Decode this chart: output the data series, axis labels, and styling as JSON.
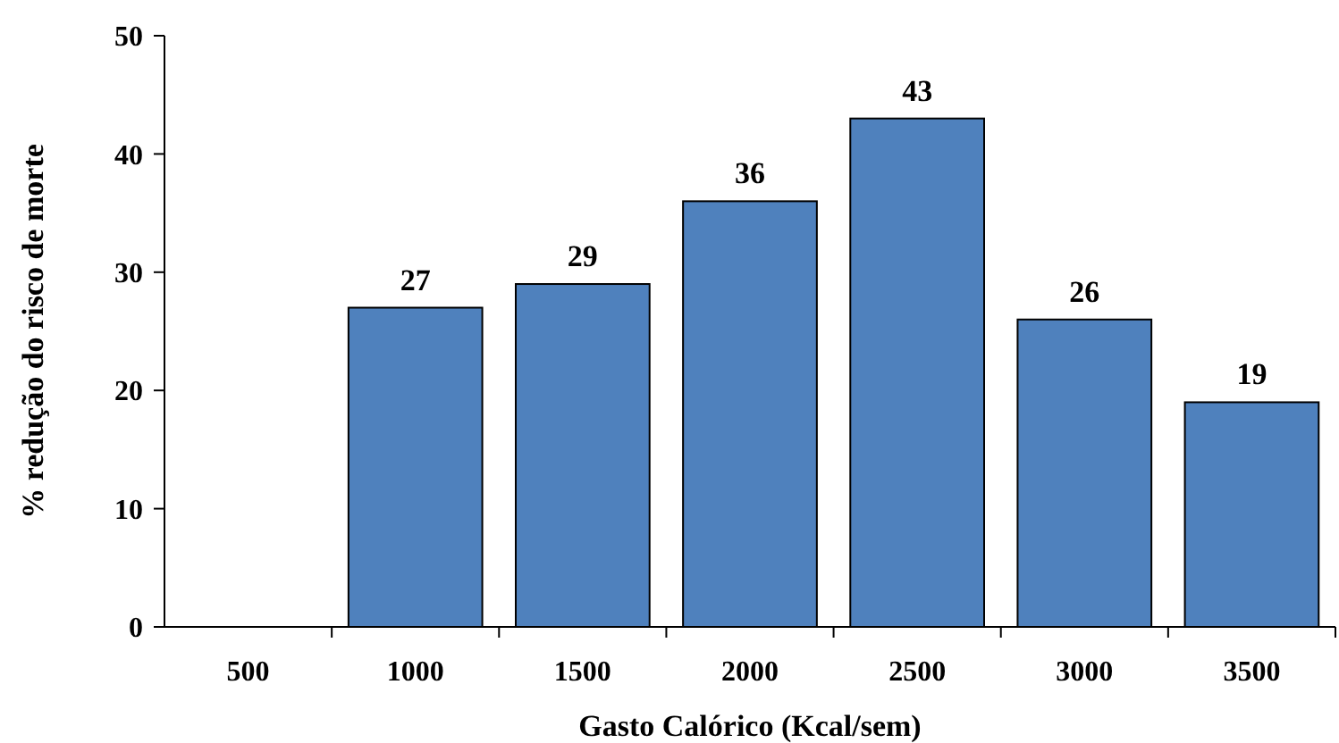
{
  "chart_data": {
    "type": "bar",
    "xlabel": "Gasto Calórico (Kcal/sem)",
    "ylabel": "% redução do risco de morte",
    "categories": [
      "500",
      "1000",
      "1500",
      "2000",
      "2500",
      "3000",
      "3500"
    ],
    "values": [
      0,
      27,
      29,
      36,
      43,
      26,
      19
    ],
    "value_labels": [
      null,
      "27",
      "29",
      "36",
      "43",
      "26",
      "19"
    ],
    "color": "#4f81bd",
    "ylim": [
      0,
      50
    ],
    "yticks": [
      0,
      10,
      20,
      30,
      40,
      50
    ],
    "grid": false
  }
}
